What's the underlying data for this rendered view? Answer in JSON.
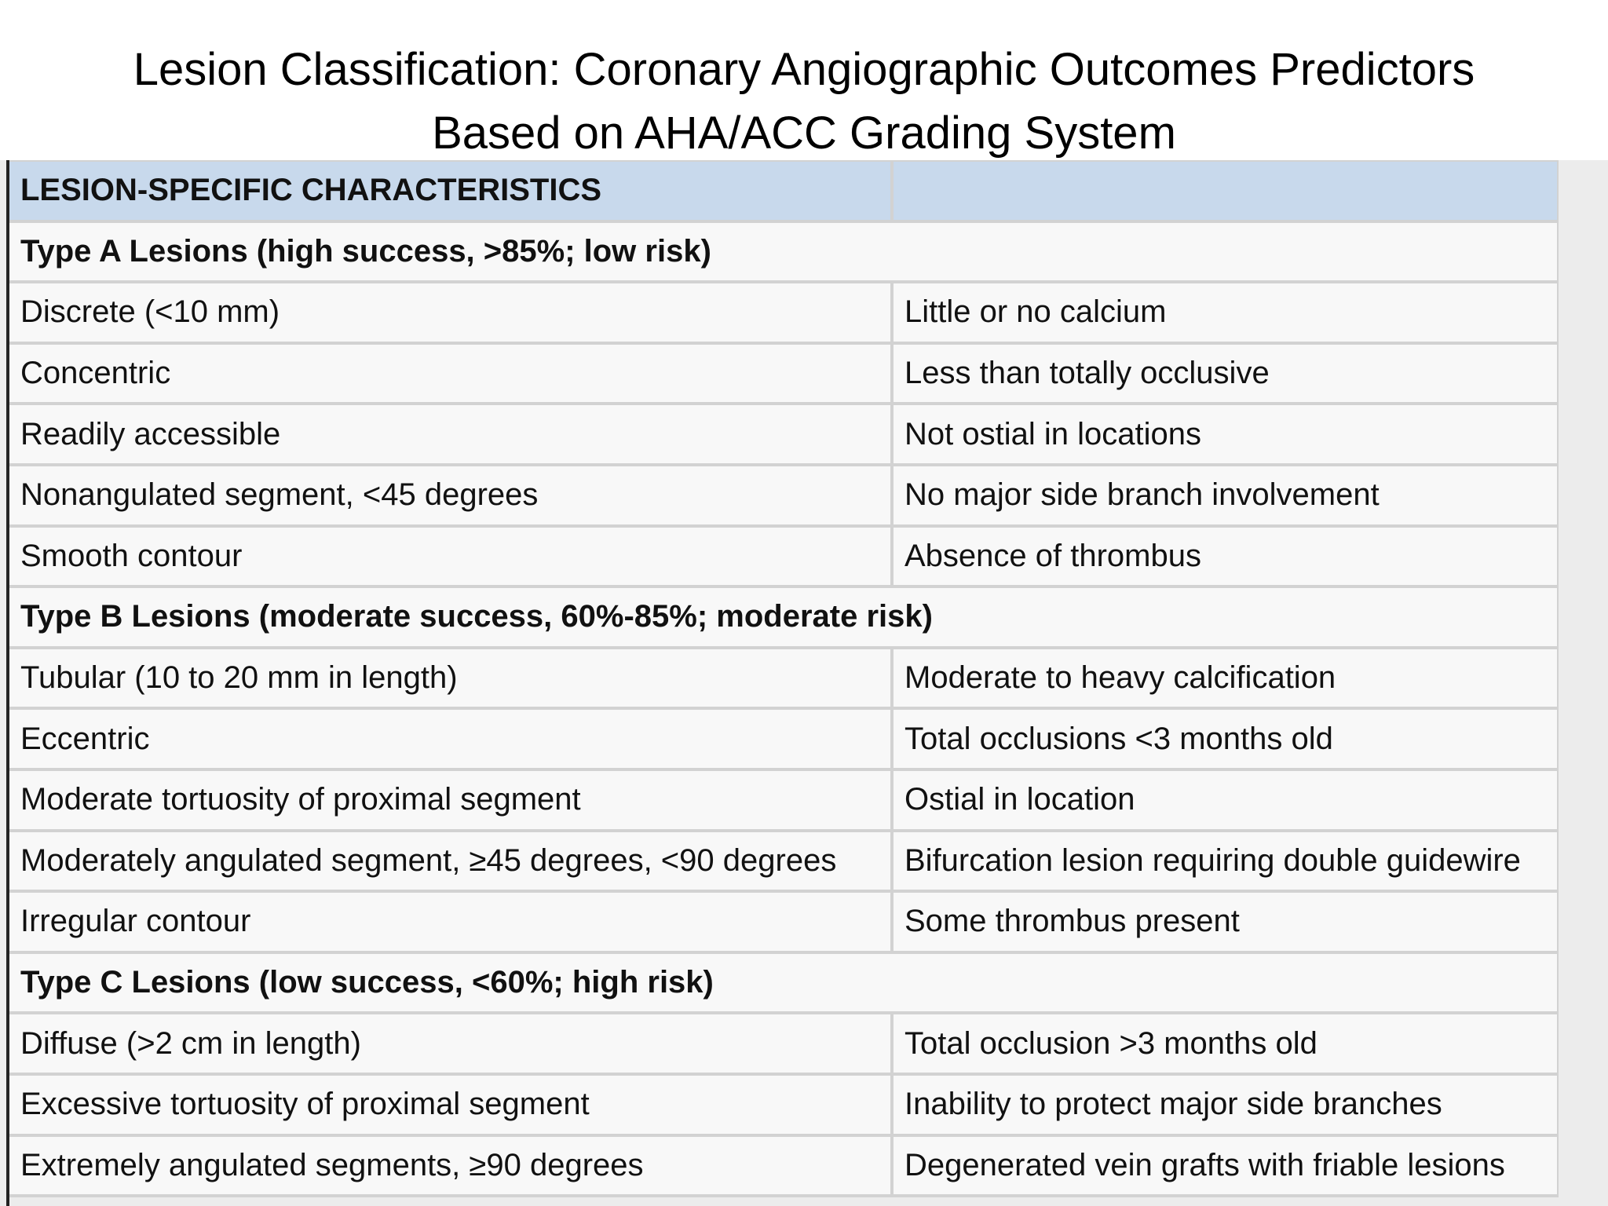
{
  "title": [
    "Lesion Classification: Coronary Angiographic Outcomes Predictors",
    "Based on AHA/ACC Grading System"
  ],
  "table": {
    "header": "LESION-SPECIFIC CHARACTERISTICS",
    "sections": [
      {
        "heading": "Type A Lesions (high success, >85%; low risk)",
        "rows": [
          [
            "Discrete (<10 mm)",
            "Little or no calcium"
          ],
          [
            "Concentric",
            "Less than totally occlusive"
          ],
          [
            "Readily accessible",
            "Not ostial in locations"
          ],
          [
            "Nonangulated segment, <45 degrees",
            "No major side branch involvement"
          ],
          [
            "Smooth contour",
            "Absence of thrombus"
          ]
        ]
      },
      {
        "heading": "Type B Lesions (moderate success, 60%-85%; moderate risk)",
        "rows": [
          [
            "Tubular (10 to 20 mm in length)",
            "Moderate to heavy calcification"
          ],
          [
            "Eccentric",
            "Total occlusions <3 months old"
          ],
          [
            "Moderate tortuosity of proximal segment",
            "Ostial in location"
          ],
          [
            "Moderately angulated segment, ≥45 degrees, <90 degrees",
            "Bifurcation lesion requiring double guidewire"
          ],
          [
            "Irregular contour",
            "Some thrombus present"
          ]
        ]
      },
      {
        "heading": "Type C Lesions (low success, <60%; high risk)",
        "rows": [
          [
            "Diffuse (>2 cm in length)",
            "Total occlusion >3 months old"
          ],
          [
            "Excessive tortuosity of proximal segment",
            "Inability to protect major side branches"
          ],
          [
            "Extremely angulated segments, ≥90 degrees",
            "Degenerated vein grafts with friable lesions"
          ]
        ]
      }
    ]
  }
}
